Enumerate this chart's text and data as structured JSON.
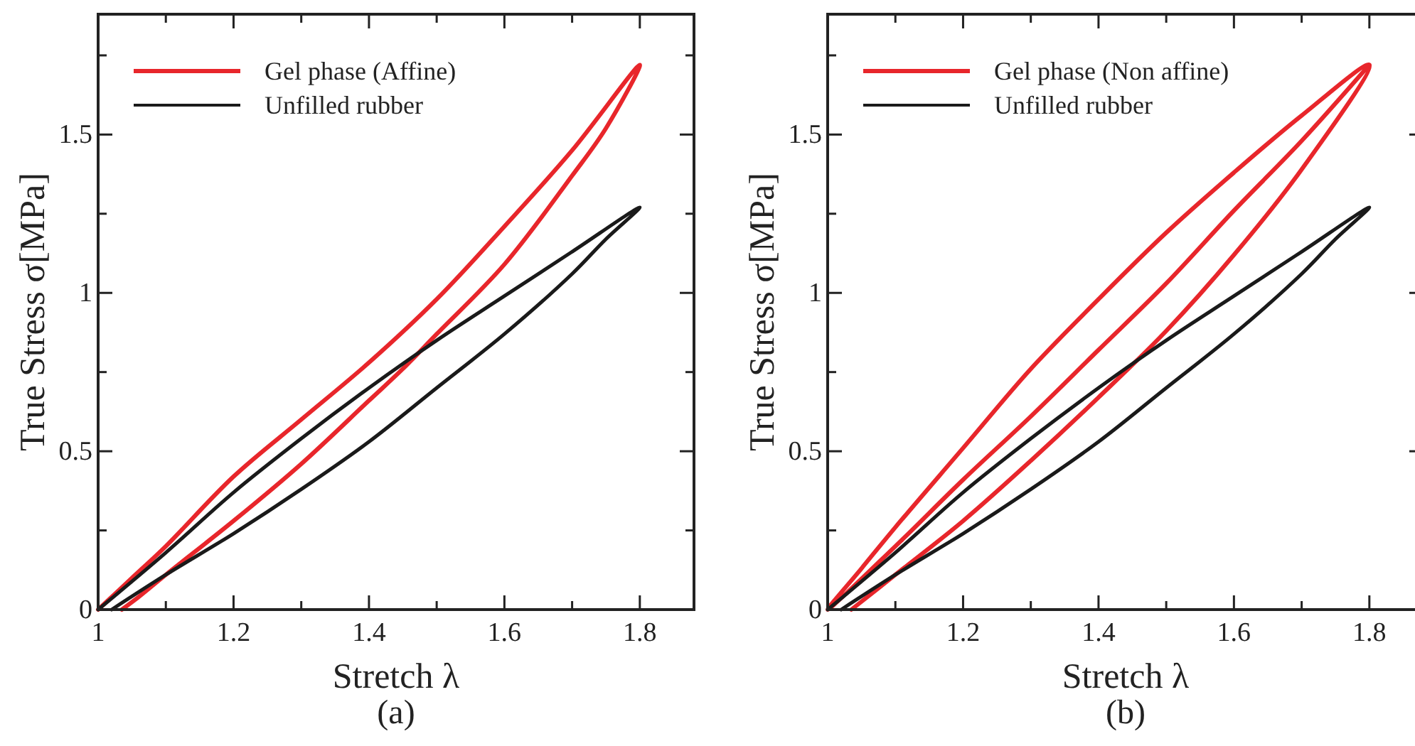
{
  "chart_data": [
    {
      "type": "line",
      "xlabel": "Stretch λ",
      "ylabel": "True Stress σ[MPa]",
      "annotations": [
        "(a)"
      ],
      "xlim": [
        1,
        1.88
      ],
      "ylim": [
        0,
        1.88
      ],
      "xticks": [
        1,
        {
          "value": 1.1,
          "label": null
        },
        1.2,
        {
          "value": 1.3,
          "label": null
        },
        1.4,
        {
          "value": 1.5,
          "label": null
        },
        1.6,
        {
          "value": 1.7,
          "label": null
        },
        1.8
      ],
      "yticks": [
        0,
        {
          "value": 0.25,
          "label": null
        },
        0.5,
        {
          "value": 0.75,
          "label": null
        },
        1,
        {
          "value": 1.25,
          "label": null
        },
        1.5,
        {
          "value": 1.75,
          "label": null
        }
      ],
      "legend": "top left",
      "grid": false,
      "marker": "none",
      "line_style": "solid",
      "series": [
        {
          "name": "Gel phase (Affine)",
          "color": "#e8262b",
          "x": [
            1,
            1.05,
            1.1,
            1.2,
            1.3,
            1.4,
            1.5,
            1.6,
            1.7,
            1.8,
            1.75,
            1.7,
            1.6,
            1.5,
            1.45,
            1.4,
            1.3,
            1.2,
            1.1,
            1.06,
            1.035
          ],
          "values": [
            0,
            0.1,
            0.2,
            0.42,
            0.6,
            0.78,
            0.98,
            1.21,
            1.45,
            1.72,
            1.52,
            1.37,
            1.09,
            0.87,
            0.76,
            0.66,
            0.46,
            0.28,
            0.11,
            0.04,
            0
          ]
        },
        {
          "name": "Unfilled rubber",
          "color": "#1a1a1a",
          "x": [
            1,
            1.1,
            1.2,
            1.3,
            1.4,
            1.5,
            1.6,
            1.7,
            1.8,
            1.75,
            1.7,
            1.6,
            1.5,
            1.4,
            1.3,
            1.2,
            1.1,
            1.02
          ],
          "values": [
            0,
            0.18,
            0.37,
            0.54,
            0.7,
            0.85,
            0.99,
            1.13,
            1.27,
            1.17,
            1.06,
            0.87,
            0.7,
            0.53,
            0.38,
            0.24,
            0.11,
            0
          ]
        }
      ]
    },
    {
      "type": "line",
      "xlabel": "Stretch λ",
      "ylabel": "True Stress σ[MPa]",
      "annotations": [
        "(b)"
      ],
      "xlim": [
        1,
        1.88
      ],
      "ylim": [
        0,
        1.88
      ],
      "xticks": [
        1,
        {
          "value": 1.1,
          "label": null
        },
        1.2,
        {
          "value": 1.3,
          "label": null
        },
        1.4,
        {
          "value": 1.5,
          "label": null
        },
        1.6,
        {
          "value": 1.7,
          "label": null
        },
        1.8
      ],
      "yticks": [
        0,
        {
          "value": 0.25,
          "label": null
        },
        0.5,
        {
          "value": 0.75,
          "label": null
        },
        1,
        {
          "value": 1.25,
          "label": null
        },
        1.5,
        {
          "value": 1.75,
          "label": null
        }
      ],
      "legend": "top left",
      "grid": false,
      "marker": "none",
      "line_style": "solid",
      "series": [
        {
          "name": "Gel phase (Non affine)",
          "color": "#e8262b",
          "x": [
            1.035,
            1.1,
            1.2,
            1.3,
            1.4,
            1.5,
            1.6,
            1.7,
            1.8,
            1.7,
            1.6,
            1.5,
            1.4,
            1.3,
            1.2,
            1.1,
            1.05,
            1,
            1.1,
            1.2,
            1.3,
            1.4,
            1.5,
            1.6,
            1.7,
            1.8
          ],
          "values": [
            0,
            0.11,
            0.28,
            0.47,
            0.67,
            0.88,
            1.12,
            1.39,
            1.72,
            1.56,
            1.38,
            1.19,
            0.98,
            0.76,
            0.51,
            0.26,
            0.13,
            0,
            0.2,
            0.41,
            0.61,
            0.82,
            1.03,
            1.26,
            1.48,
            1.72
          ]
        },
        {
          "name": "Unfilled rubber",
          "color": "#1a1a1a",
          "x": [
            1,
            1.1,
            1.2,
            1.3,
            1.4,
            1.5,
            1.6,
            1.7,
            1.8,
            1.75,
            1.7,
            1.6,
            1.5,
            1.4,
            1.3,
            1.2,
            1.1,
            1.02
          ],
          "values": [
            0,
            0.18,
            0.37,
            0.54,
            0.7,
            0.85,
            0.99,
            1.13,
            1.27,
            1.17,
            1.06,
            0.87,
            0.7,
            0.53,
            0.38,
            0.24,
            0.11,
            0
          ]
        }
      ]
    }
  ]
}
